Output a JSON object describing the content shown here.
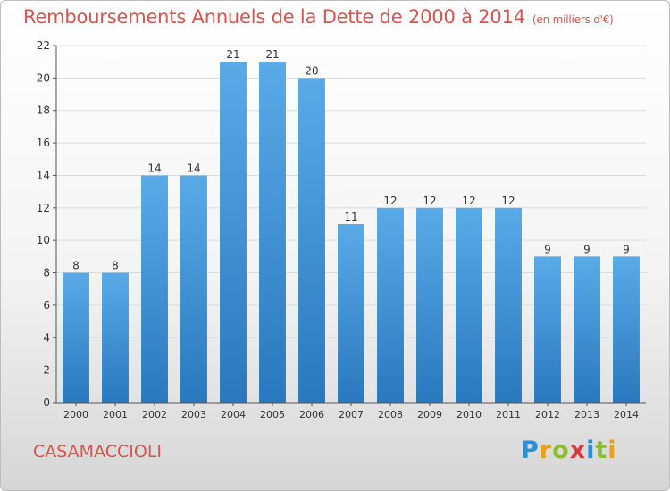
{
  "title": "Remboursements Annuels de la Dette de 2000 à 2014",
  "subtitle": "(en milliers d'€)",
  "commune": "CASAMACCIOLI",
  "logo": {
    "text": "Proxiti",
    "letters": [
      "P",
      "r",
      "o",
      "x",
      "i",
      "t",
      "i"
    ],
    "colors": [
      "#2a8fd6",
      "#e8a219",
      "#8cbf2a",
      "#d93a3a",
      "#2a8fd6",
      "#8cbf2a",
      "#e8a219"
    ]
  },
  "colors": {
    "title": "#d9534f",
    "bar_top": "#5aaae8",
    "bar_bottom": "#2a78bd",
    "grid": "#dcdcdc",
    "axis": "#555555"
  },
  "chart_data": {
    "type": "bar",
    "title": "Remboursements Annuels de la Dette de 2000 à 2014",
    "subtitle": "(en milliers d'€)",
    "categories": [
      "2000",
      "2001",
      "2002",
      "2003",
      "2004",
      "2005",
      "2006",
      "2007",
      "2008",
      "2009",
      "2010",
      "2011",
      "2012",
      "2013",
      "2014"
    ],
    "values": [
      8,
      8,
      14,
      14,
      21,
      21,
      20,
      11,
      12,
      12,
      12,
      12,
      9,
      9,
      9
    ],
    "ylim": [
      0,
      22
    ],
    "yticks": [
      0,
      2,
      4,
      6,
      8,
      10,
      12,
      14,
      16,
      18,
      20,
      22
    ],
    "grid": true,
    "xlabel": "",
    "ylabel": ""
  }
}
